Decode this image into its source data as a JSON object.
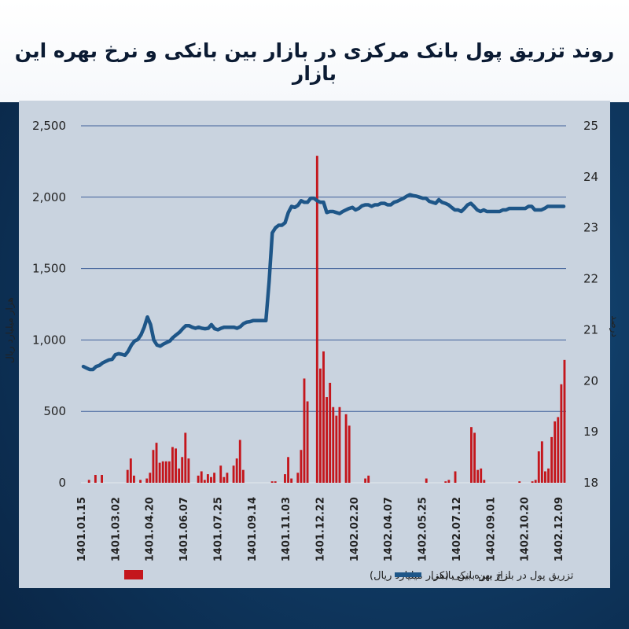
{
  "title": "روند تزریق پول بانک مرکزی در بازار بین بانکی و نرخ بهره این بازار",
  "chart_data": {
    "type": "bar+line",
    "y_left": {
      "label": "هزار میلیارد ریال",
      "ticks": [
        "2,500",
        "2,000",
        "1,500",
        "1,000",
        "500",
        "0"
      ],
      "range": [
        0,
        2500
      ]
    },
    "y_right": {
      "label": "درصد",
      "ticks": [
        "25",
        "24",
        "23",
        "22",
        "21",
        "20",
        "19",
        "18"
      ],
      "range": [
        18,
        25
      ]
    },
    "x_tick_labels": [
      "1401.01.15",
      "1401.03.02",
      "1401.04.20",
      "1401.06.07",
      "1401.07.25",
      "1401.09.14",
      "1401.11.03",
      "1401.12.22",
      "1402.02.20",
      "1402.04.07",
      "1402.05.25",
      "1402.07.12",
      "1402.09.01",
      "1402.10.20",
      "1402.12.09"
    ],
    "grid": true,
    "series": [
      {
        "name": "تزریق پول در بازار بین بانکی (هزار میلیارد ریال)",
        "type": "bar",
        "color": "#c4161c",
        "values": [
          0,
          0,
          20,
          0,
          55,
          0,
          55,
          0,
          0,
          0,
          0,
          0,
          0,
          0,
          90,
          170,
          50,
          0,
          20,
          0,
          30,
          70,
          230,
          280,
          140,
          150,
          150,
          150,
          250,
          240,
          100,
          180,
          350,
          170,
          0,
          0,
          50,
          80,
          20,
          60,
          40,
          70,
          0,
          120,
          40,
          70,
          0,
          120,
          170,
          300,
          90,
          0,
          0,
          0,
          0,
          0,
          0,
          0,
          0,
          10,
          10,
          0,
          0,
          60,
          180,
          30,
          0,
          70,
          230,
          730,
          570,
          0,
          0,
          2290,
          800,
          920,
          600,
          700,
          530,
          470,
          530,
          0,
          480,
          400,
          0,
          0,
          0,
          0,
          30,
          50,
          0,
          0,
          0,
          0,
          0,
          0,
          0,
          0,
          0,
          0,
          0,
          0,
          0,
          0,
          0,
          0,
          0,
          30,
          0,
          0,
          0,
          0,
          0,
          10,
          20,
          0,
          80,
          0,
          0,
          0,
          0,
          390,
          350,
          90,
          100,
          20,
          0,
          0,
          0,
          0,
          0,
          0,
          0,
          0,
          0,
          0,
          10,
          0,
          0,
          0,
          10,
          20,
          220,
          290,
          80,
          100,
          320,
          430,
          460,
          690,
          860
        ]
      },
      {
        "name": "نرخ بهره بین بانکی",
        "type": "line",
        "color": "#1e5688",
        "x": [
          0,
          1,
          2,
          3,
          4,
          5,
          6,
          7,
          8,
          9,
          10,
          11,
          12,
          13,
          14,
          15,
          16,
          17,
          18,
          19,
          20,
          21,
          22,
          23,
          24,
          25,
          26,
          27,
          28,
          29,
          30,
          31,
          32,
          33,
          34,
          35,
          36,
          37,
          38,
          39,
          40,
          41,
          42,
          43,
          44,
          45,
          46,
          47,
          48,
          49,
          50,
          51,
          52,
          53,
          54,
          55,
          56,
          57,
          58,
          59,
          60,
          61,
          62,
          63,
          64,
          65,
          66,
          67,
          68,
          69,
          70,
          71,
          72,
          73,
          74,
          75,
          76,
          77,
          78,
          79,
          80,
          81,
          82,
          83,
          84,
          85,
          86,
          87,
          88,
          89,
          90,
          91,
          92,
          93,
          94,
          95,
          96,
          97,
          98,
          99,
          100,
          101,
          102,
          103,
          104,
          105,
          106,
          107,
          108,
          109,
          110,
          111,
          112,
          113,
          114,
          115,
          116,
          117,
          118,
          119,
          120,
          121,
          122,
          123,
          124,
          125,
          126,
          127,
          128,
          129,
          130,
          131,
          132,
          133,
          134,
          135,
          136,
          137,
          138,
          139,
          140,
          141,
          142,
          143,
          144,
          145,
          146,
          147,
          148,
          149,
          150
        ],
        "values": [
          20.28,
          20.25,
          20.22,
          20.22,
          20.28,
          20.3,
          20.35,
          20.38,
          20.41,
          20.42,
          20.51,
          20.53,
          20.52,
          20.5,
          20.58,
          20.7,
          20.78,
          20.81,
          20.9,
          21.05,
          21.25,
          21.1,
          20.8,
          20.7,
          20.68,
          20.72,
          20.75,
          20.78,
          20.85,
          20.9,
          20.95,
          21.02,
          21.08,
          21.08,
          21.05,
          21.03,
          21.05,
          21.03,
          21.02,
          21.03,
          21.1,
          21.02,
          21.0,
          21.03,
          21.05,
          21.05,
          21.05,
          21.05,
          21.03,
          21.06,
          21.12,
          21.15,
          21.16,
          21.18,
          21.18,
          21.18,
          21.18,
          21.18,
          21.95,
          22.9,
          23.0,
          23.05,
          23.05,
          23.1,
          23.3,
          23.42,
          23.4,
          23.44,
          23.53,
          23.5,
          23.5,
          23.58,
          23.58,
          23.53,
          23.5,
          23.5,
          23.3,
          23.32,
          23.32,
          23.3,
          23.28,
          23.32,
          23.35,
          23.38,
          23.4,
          23.35,
          23.38,
          23.43,
          23.45,
          23.45,
          23.42,
          23.45,
          23.45,
          23.48,
          23.48,
          23.45,
          23.45,
          23.5,
          23.52,
          23.55,
          23.58,
          23.62,
          23.65,
          23.63,
          23.62,
          23.6,
          23.58,
          23.58,
          23.52,
          23.5,
          23.48,
          23.55,
          23.5,
          23.48,
          23.45,
          23.4,
          23.35,
          23.35,
          23.32,
          23.38,
          23.45,
          23.48,
          23.42,
          23.35,
          23.32,
          23.35,
          23.32,
          23.32,
          23.32,
          23.32,
          23.32,
          23.35,
          23.35,
          23.38,
          23.38,
          23.38,
          23.38,
          23.38,
          23.38,
          23.42,
          23.42,
          23.35,
          23.35,
          23.35,
          23.38,
          23.42,
          23.42,
          23.42,
          23.42,
          23.42,
          23.42
        ]
      }
    ]
  }
}
